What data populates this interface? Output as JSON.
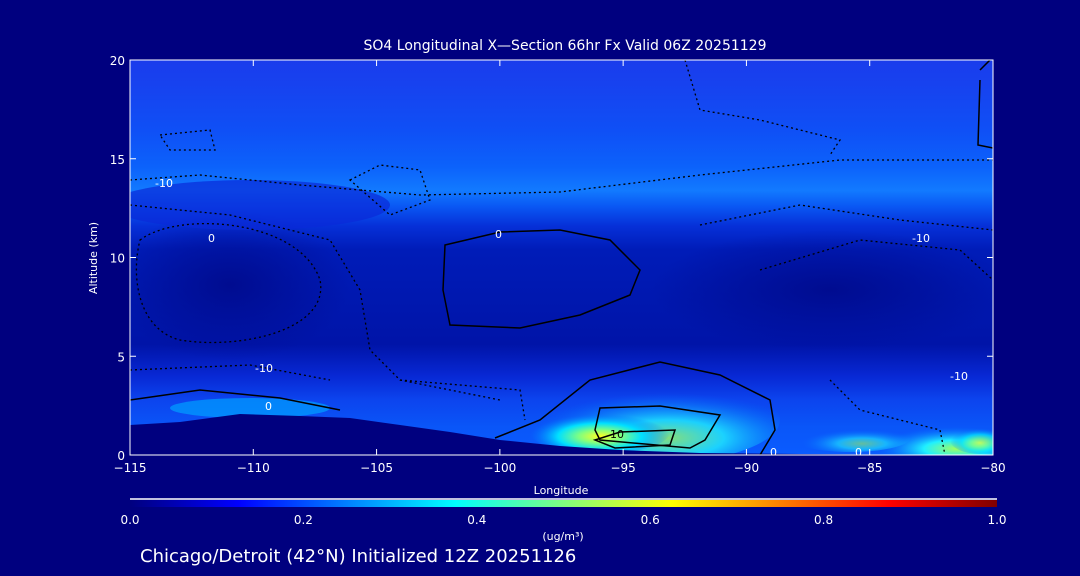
{
  "chart_data": {
    "type": "heatmap",
    "title": "SO4 Longitudinal X—Section 66hr  Fx Valid 06Z 20251129",
    "xlabel": "Longitude",
    "ylabel": "Altitude (km)",
    "xlim": [
      -115,
      -80
    ],
    "ylim": [
      0,
      20
    ],
    "x_ticks": [
      "−115",
      "−110",
      "−105",
      "−100",
      "−95",
      "−90",
      "−85",
      "−80"
    ],
    "x_tick_values": [
      -115,
      -110,
      -105,
      -100,
      -95,
      -90,
      -85,
      -80
    ],
    "y_ticks": [
      "0",
      "5",
      "10",
      "15",
      "20"
    ],
    "y_tick_values": [
      0,
      5,
      10,
      15,
      20
    ],
    "colorbar": {
      "min": 0.0,
      "max": 1.0,
      "ticks": [
        "0.0",
        "0.2",
        "0.4",
        "0.6",
        "0.8",
        "1.0"
      ],
      "units": "(ug/m³)",
      "colors": [
        "#00007f",
        "#0000ff",
        "#00ffff",
        "#ffff00",
        "#ff0000",
        "#7f0000"
      ]
    },
    "contour_labels": [
      "10",
      "-10",
      "0",
      "-10",
      "0",
      "-10",
      "10",
      "0",
      "0",
      "0",
      "-10",
      "-10",
      "0"
    ],
    "subtitle": "Chicago/Detroit (42°N) Initialized 12Z 20251126"
  }
}
